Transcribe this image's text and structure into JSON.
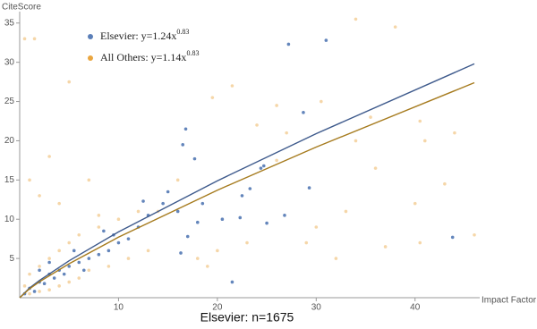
{
  "chart_data": {
    "type": "scatter",
    "x_label": "Impact Factor",
    "y_label": "CiteScore",
    "caption": "Elsevier: n=1675",
    "xlim": [
      0,
      46
    ],
    "ylim": [
      0,
      36
    ],
    "xticks": [
      10,
      20,
      30,
      40
    ],
    "yticks": [
      5,
      10,
      15,
      20,
      25,
      30,
      35
    ],
    "series": [
      {
        "name": "Elsevier: y=1.24x",
        "name_sup": "0.83",
        "color": "#5b7fb8",
        "line_color": "#3e5a8c",
        "x": [
          43.8,
          31,
          27.2,
          28.7,
          16.8,
          16.5,
          17.7,
          24.7,
          24.4,
          22.5,
          23.3,
          22.3,
          26.8,
          25,
          29.3,
          18,
          17,
          16.3,
          21.5,
          16,
          14.5,
          13,
          12,
          11,
          10,
          9,
          8,
          7,
          6,
          5,
          4,
          3,
          2,
          1,
          0.5,
          3.5,
          2.5,
          4.5,
          6.5,
          1.5,
          8.5,
          9.5,
          5.5,
          3,
          2,
          12.5,
          15,
          18.5,
          20.5
        ],
        "values": [
          7.7,
          32.8,
          32.3,
          23.6,
          21.5,
          19.5,
          17.7,
          16.8,
          16.5,
          13,
          13.9,
          10.2,
          10.5,
          9.5,
          14,
          9.6,
          7.8,
          5.7,
          2,
          11,
          12,
          10.5,
          9,
          7.5,
          7,
          6,
          5.5,
          5,
          4.5,
          4,
          3.5,
          3,
          2,
          1.2,
          0.5,
          2.5,
          1.8,
          3,
          3.5,
          0.8,
          8.5,
          8,
          6,
          4.5,
          3.5,
          12.3,
          13.5,
          12,
          10
        ],
        "fit_x": [
          0,
          1,
          2,
          5,
          10,
          20,
          30,
          46
        ],
        "fit_values": [
          0,
          1.24,
          2.2,
          4.71,
          8.38,
          14.9,
          20.9,
          29.8
        ]
      },
      {
        "name": "All Others: y=1.14x",
        "name_sup": "0.83",
        "color": "#eaa640",
        "line_color": "#a67b1e",
        "x": [
          34,
          38,
          0.5,
          1.5,
          5,
          35.5,
          40.5,
          21.5,
          19.5,
          26,
          30.5,
          44,
          41,
          26,
          36,
          43,
          33,
          40,
          37,
          40.5,
          29,
          32,
          23,
          20,
          18,
          19,
          13,
          11,
          9,
          7,
          6,
          5,
          4,
          3,
          2,
          1,
          0.5,
          1,
          2,
          3,
          4,
          5,
          6,
          8,
          10,
          12,
          14,
          16,
          2,
          4,
          3,
          1,
          7,
          8,
          24,
          30,
          27,
          34,
          46
        ],
        "values": [
          35.5,
          34.5,
          33,
          33,
          27.5,
          23,
          22.5,
          27,
          25.5,
          24.5,
          25,
          21,
          20,
          17.5,
          16.5,
          14.5,
          11,
          12,
          6.5,
          7,
          7,
          5,
          7,
          6,
          5,
          4,
          6,
          5,
          4,
          3.5,
          2.5,
          2,
          1.5,
          1,
          0.8,
          0.5,
          1.5,
          3,
          4,
          5,
          6,
          7,
          8,
          9,
          10,
          11,
          11,
          15,
          13,
          12,
          18,
          15,
          15,
          10.5,
          22,
          9,
          21,
          20,
          8
        ],
        "fit_x": [
          0,
          1,
          2,
          5,
          10,
          20,
          30,
          46
        ],
        "fit_values": [
          0,
          1.14,
          2.03,
          4.33,
          7.71,
          13.7,
          19.2,
          27.4
        ]
      }
    ]
  }
}
